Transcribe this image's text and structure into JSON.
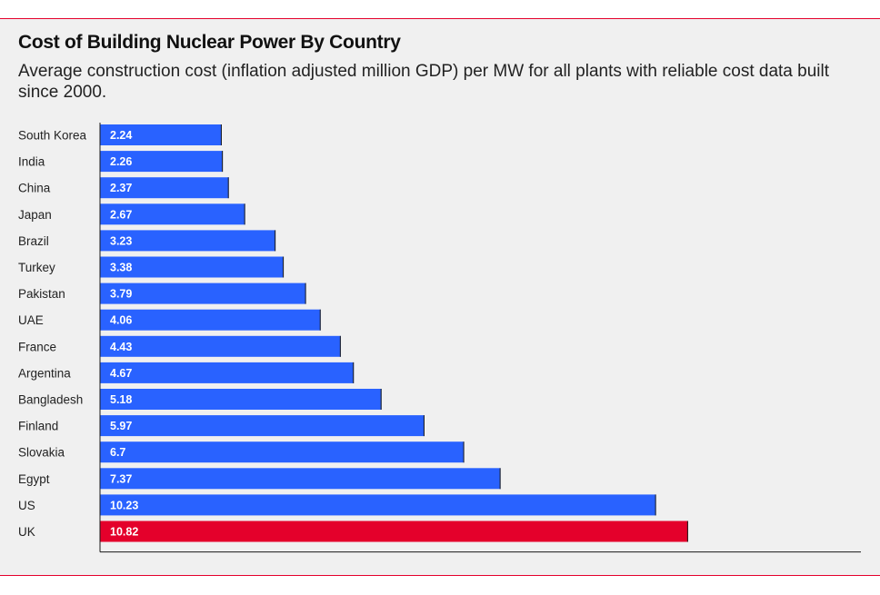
{
  "title": "Cost of Building Nuclear Power By Country",
  "subtitle": "Average construction cost (inflation adjusted million GDP) per MW for all plants with reliable cost data built since 2000.",
  "colors": {
    "bar": "#2962ff",
    "highlight": "#e4002b",
    "rule": "#e4002b"
  },
  "chart_data": {
    "type": "bar",
    "orientation": "horizontal",
    "title": "Cost of Building Nuclear Power By Country",
    "subtitle": "Average construction cost (inflation adjusted million GDP) per MW for all plants with reliable cost data built since 2000.",
    "xlabel": "",
    "ylabel": "",
    "xlim": [
      0,
      14
    ],
    "grid": false,
    "data_labels": true,
    "highlight": "UK",
    "categories": [
      "South Korea",
      "India",
      "China",
      "Japan",
      "Brazil",
      "Turkey",
      "Pakistan",
      "UAE",
      "France",
      "Argentina",
      "Bangladesh",
      "Finland",
      "Slovakia",
      "Egypt",
      "US",
      "UK"
    ],
    "values": [
      2.24,
      2.26,
      2.37,
      2.67,
      3.23,
      3.38,
      3.79,
      4.06,
      4.43,
      4.67,
      5.18,
      5.97,
      6.7,
      7.37,
      10.23,
      10.82
    ]
  }
}
